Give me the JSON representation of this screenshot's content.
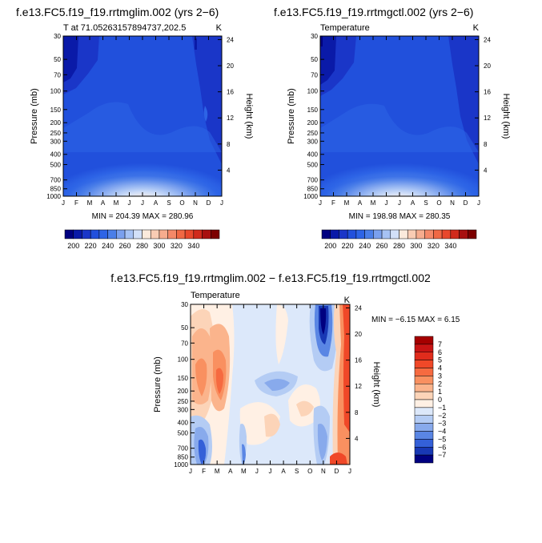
{
  "chart_data": [
    {
      "type": "contour",
      "title": "f.e13.FC5.f19_f19.rrtmglim.002 (yrs 2−6)",
      "left_label": "T at 71.05263157894737,202.5",
      "right_label": "K",
      "ylabel": "Pressure (mb)",
      "y2label": "Height (km)",
      "months": [
        "J",
        "F",
        "M",
        "A",
        "M",
        "J",
        "J",
        "A",
        "S",
        "O",
        "N",
        "D",
        "J"
      ],
      "pressure_ticks": [
        "30",
        "50",
        "70",
        "100",
        "150",
        "200",
        "250",
        "300",
        "400",
        "500",
        "700",
        "850",
        "1000"
      ],
      "height_ticks": [
        "4",
        "8",
        "12",
        "16",
        "20",
        "24"
      ],
      "stats": "MIN = 204.39  MAX = 280.96",
      "min": 204.39,
      "max": 280.96,
      "colorbar": {
        "labels": [
          "200",
          "220",
          "240",
          "260",
          "280",
          "300",
          "320",
          "340"
        ],
        "colors": [
          "#000080",
          "#0a1aa8",
          "#1a36c8",
          "#2150dc",
          "#2d64e6",
          "#4a7ee8",
          "#7aa0ee",
          "#a6c2f4",
          "#d2e0f8",
          "#fbeadc",
          "#f9ccb4",
          "#f6ac8e",
          "#f48868",
          "#f06844",
          "#e8482c",
          "#d02a1c",
          "#a81010",
          "#7c0000"
        ]
      }
    },
    {
      "type": "contour",
      "title": "f.e13.FC5.f19_f19.rrtmgctl.002 (yrs 2−6)",
      "left_label": "Temperature",
      "right_label": "K",
      "ylabel": "Pressure (mb)",
      "y2label": "Height (km)",
      "months": [
        "J",
        "F",
        "M",
        "A",
        "M",
        "J",
        "J",
        "A",
        "S",
        "O",
        "N",
        "D",
        "J"
      ],
      "pressure_ticks": [
        "30",
        "50",
        "70",
        "100",
        "150",
        "200",
        "250",
        "300",
        "400",
        "500",
        "700",
        "850",
        "1000"
      ],
      "height_ticks": [
        "4",
        "8",
        "12",
        "16",
        "20",
        "24"
      ],
      "stats": "MIN = 198.98  MAX = 280.35",
      "min": 198.98,
      "max": 280.35,
      "colorbar": {
        "labels": [
          "200",
          "220",
          "240",
          "260",
          "280",
          "300",
          "320",
          "340"
        ]
      }
    },
    {
      "type": "contour",
      "title": "f.e13.FC5.f19_f19.rrtmglim.002 − f.e13.FC5.f19_f19.rrtmgctl.002",
      "left_label": "Temperature",
      "right_label": "K",
      "ylabel": "Pressure (mb)",
      "y2label": "Height (km)",
      "months": [
        "J",
        "F",
        "M",
        "A",
        "M",
        "J",
        "J",
        "A",
        "S",
        "O",
        "N",
        "D",
        "J"
      ],
      "pressure_ticks": [
        "30",
        "50",
        "70",
        "100",
        "150",
        "200",
        "250",
        "300",
        "400",
        "500",
        "700",
        "850",
        "1000"
      ],
      "height_ticks": [
        "4",
        "8",
        "12",
        "16",
        "20",
        "24"
      ],
      "stats": "MIN =   −6.15  MAX =    6.15",
      "min": -6.15,
      "max": 6.15,
      "colorbar": {
        "labels": [
          "7",
          "6",
          "5",
          "4",
          "3",
          "2",
          "1",
          "0",
          "−1",
          "−2",
          "−3",
          "−4",
          "−5",
          "−6",
          "−7"
        ],
        "colors": [
          "#a50000",
          "#c81414",
          "#e02c1c",
          "#f04828",
          "#f66a40",
          "#f99060",
          "#fbb48c",
          "#fcd4b8",
          "#fff0e4",
          "#dce8fa",
          "#b4ccf4",
          "#88aaec",
          "#5a86e4",
          "#3460d8",
          "#1838b4",
          "#000080"
        ]
      }
    }
  ]
}
